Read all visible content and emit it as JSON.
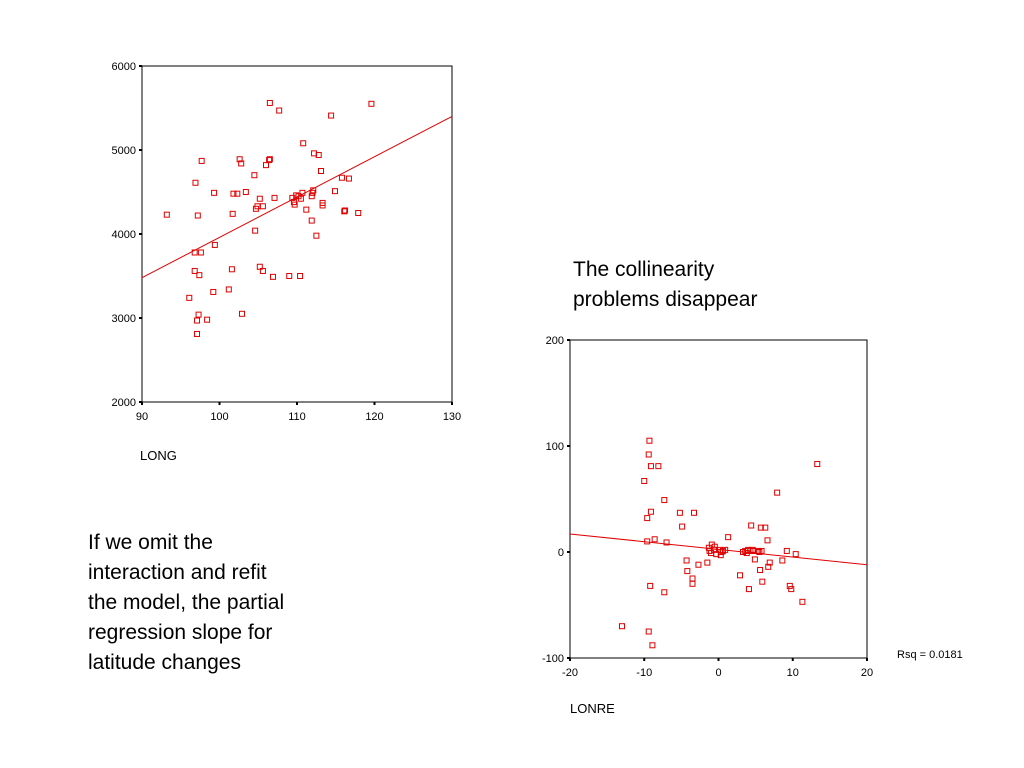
{
  "notes": {
    "collinearity": "The collinearity\nproblems disappear",
    "omit_interaction": "If we omit the\ninteraction and refit\nthe model, the partial\nregression slope for\nlatitude changes"
  },
  "colors": {
    "marker": "#e00000",
    "fit_line": "#e00000",
    "axis": "#000000"
  },
  "chart_data": [
    {
      "type": "scatter",
      "title": "",
      "xlabel": "LONG",
      "ylabel": "",
      "xlim": [
        90,
        130
      ],
      "ylim": [
        2000,
        6000
      ],
      "xticks": [
        90,
        100,
        110,
        120,
        130
      ],
      "yticks": [
        2000,
        3000,
        4000,
        5000,
        6000
      ],
      "marker": "hollow-square",
      "fit_line": {
        "x": [
          90,
          130
        ],
        "y": [
          3480,
          5400
        ]
      },
      "points": [
        {
          "x": 93.2,
          "y": 4230
        },
        {
          "x": 96.1,
          "y": 3240
        },
        {
          "x": 96.8,
          "y": 3780
        },
        {
          "x": 96.8,
          "y": 3560
        },
        {
          "x": 96.9,
          "y": 4610
        },
        {
          "x": 97.1,
          "y": 2810
        },
        {
          "x": 97.1,
          "y": 2970
        },
        {
          "x": 97.2,
          "y": 4220
        },
        {
          "x": 97.3,
          "y": 3040
        },
        {
          "x": 97.4,
          "y": 3510
        },
        {
          "x": 97.6,
          "y": 3780
        },
        {
          "x": 97.7,
          "y": 4870
        },
        {
          "x": 98.4,
          "y": 2980
        },
        {
          "x": 99.2,
          "y": 3310
        },
        {
          "x": 99.4,
          "y": 3870
        },
        {
          "x": 99.3,
          "y": 4490
        },
        {
          "x": 101.2,
          "y": 3340
        },
        {
          "x": 101.6,
          "y": 3580
        },
        {
          "x": 101.7,
          "y": 4240
        },
        {
          "x": 101.8,
          "y": 4480
        },
        {
          "x": 102.3,
          "y": 4480
        },
        {
          "x": 102.6,
          "y": 4890
        },
        {
          "x": 102.8,
          "y": 4840
        },
        {
          "x": 102.9,
          "y": 3050
        },
        {
          "x": 103.4,
          "y": 4500
        },
        {
          "x": 104.5,
          "y": 4700
        },
        {
          "x": 104.6,
          "y": 4040
        },
        {
          "x": 104.7,
          "y": 4300
        },
        {
          "x": 104.9,
          "y": 4330
        },
        {
          "x": 105.2,
          "y": 4420
        },
        {
          "x": 105.2,
          "y": 3610
        },
        {
          "x": 105.6,
          "y": 3560
        },
        {
          "x": 105.6,
          "y": 4330
        },
        {
          "x": 106.0,
          "y": 4820
        },
        {
          "x": 106.4,
          "y": 4880
        },
        {
          "x": 106.5,
          "y": 4890
        },
        {
          "x": 106.5,
          "y": 5560
        },
        {
          "x": 106.9,
          "y": 3490
        },
        {
          "x": 107.1,
          "y": 4430
        },
        {
          "x": 107.7,
          "y": 5470
        },
        {
          "x": 109.0,
          "y": 3500
        },
        {
          "x": 109.4,
          "y": 4430
        },
        {
          "x": 109.6,
          "y": 4380
        },
        {
          "x": 109.7,
          "y": 4350
        },
        {
          "x": 109.9,
          "y": 4460
        },
        {
          "x": 110.2,
          "y": 4450
        },
        {
          "x": 110.4,
          "y": 3500
        },
        {
          "x": 110.5,
          "y": 4420
        },
        {
          "x": 110.7,
          "y": 4490
        },
        {
          "x": 110.8,
          "y": 5080
        },
        {
          "x": 111.2,
          "y": 4290
        },
        {
          "x": 111.9,
          "y": 4450
        },
        {
          "x": 111.9,
          "y": 4160
        },
        {
          "x": 112.0,
          "y": 4490
        },
        {
          "x": 112.1,
          "y": 4520
        },
        {
          "x": 112.2,
          "y": 4960
        },
        {
          "x": 112.5,
          "y": 3980
        },
        {
          "x": 112.8,
          "y": 4940
        },
        {
          "x": 113.1,
          "y": 4750
        },
        {
          "x": 113.3,
          "y": 4340
        },
        {
          "x": 113.3,
          "y": 4370
        },
        {
          "x": 114.4,
          "y": 5410
        },
        {
          "x": 114.9,
          "y": 4510
        },
        {
          "x": 115.8,
          "y": 4670
        },
        {
          "x": 116.1,
          "y": 4270
        },
        {
          "x": 116.2,
          "y": 4280
        },
        {
          "x": 116.7,
          "y": 4660
        },
        {
          "x": 117.9,
          "y": 4250
        },
        {
          "x": 119.6,
          "y": 5550
        }
      ]
    },
    {
      "type": "scatter",
      "title": "",
      "xlabel": "LONRE",
      "ylabel": "",
      "xlim": [
        -20,
        20
      ],
      "ylim": [
        -100,
        200
      ],
      "xticks": [
        -20,
        -10,
        0,
        10,
        20
      ],
      "yticks": [
        -100,
        0,
        100,
        200
      ],
      "marker": "hollow-square",
      "annotation": "Rsq = 0.0181",
      "fit_line": {
        "x": [
          -20,
          20
        ],
        "y": [
          17,
          -12
        ]
      },
      "points": [
        {
          "x": -13.0,
          "y": -70
        },
        {
          "x": -10.0,
          "y": 67
        },
        {
          "x": -9.6,
          "y": 32
        },
        {
          "x": -9.6,
          "y": 10
        },
        {
          "x": -9.4,
          "y": -75
        },
        {
          "x": -9.4,
          "y": 92
        },
        {
          "x": -9.3,
          "y": 105
        },
        {
          "x": -9.2,
          "y": -32
        },
        {
          "x": -9.1,
          "y": 38
        },
        {
          "x": -9.1,
          "y": 81
        },
        {
          "x": -8.9,
          "y": -88
        },
        {
          "x": -8.6,
          "y": 12
        },
        {
          "x": -8.1,
          "y": 81
        },
        {
          "x": -7.3,
          "y": -38
        },
        {
          "x": -7.3,
          "y": 49
        },
        {
          "x": -7.0,
          "y": 9
        },
        {
          "x": -5.2,
          "y": 37
        },
        {
          "x": -4.9,
          "y": 24
        },
        {
          "x": -4.2,
          "y": -18
        },
        {
          "x": -3.5,
          "y": -25
        },
        {
          "x": -3.5,
          "y": -30
        },
        {
          "x": -3.3,
          "y": 37
        },
        {
          "x": -2.7,
          "y": -12
        },
        {
          "x": -4.3,
          "y": -8
        },
        {
          "x": -1.5,
          "y": -10
        },
        {
          "x": -1.3,
          "y": 4
        },
        {
          "x": -1.2,
          "y": 1
        },
        {
          "x": -1.0,
          "y": -1
        },
        {
          "x": -0.9,
          "y": 7
        },
        {
          "x": -0.6,
          "y": 2
        },
        {
          "x": -0.5,
          "y": 5
        },
        {
          "x": -0.3,
          "y": -2
        },
        {
          "x": 0.2,
          "y": 2
        },
        {
          "x": 0.3,
          "y": -3
        },
        {
          "x": 0.4,
          "y": 0
        },
        {
          "x": 0.6,
          "y": 1
        },
        {
          "x": 0.9,
          "y": 2
        },
        {
          "x": 1.3,
          "y": 14
        },
        {
          "x": 2.9,
          "y": -22
        },
        {
          "x": 3.3,
          "y": 0
        },
        {
          "x": 3.6,
          "y": 1
        },
        {
          "x": 3.8,
          "y": -1
        },
        {
          "x": 4.0,
          "y": 2
        },
        {
          "x": 4.1,
          "y": -35
        },
        {
          "x": 4.3,
          "y": 1
        },
        {
          "x": 4.4,
          "y": 25
        },
        {
          "x": 4.6,
          "y": 2
        },
        {
          "x": 4.7,
          "y": 1
        },
        {
          "x": 4.9,
          "y": -7
        },
        {
          "x": 5.3,
          "y": 1
        },
        {
          "x": 5.5,
          "y": 0
        },
        {
          "x": 5.6,
          "y": -17
        },
        {
          "x": 5.7,
          "y": 23
        },
        {
          "x": 5.8,
          "y": 1
        },
        {
          "x": 5.9,
          "y": -28
        },
        {
          "x": 6.3,
          "y": 23
        },
        {
          "x": 6.6,
          "y": 11
        },
        {
          "x": 6.7,
          "y": -14
        },
        {
          "x": 6.9,
          "y": -10
        },
        {
          "x": 7.9,
          "y": 56
        },
        {
          "x": 8.6,
          "y": -8
        },
        {
          "x": 9.2,
          "y": 1
        },
        {
          "x": 9.6,
          "y": -32
        },
        {
          "x": 9.8,
          "y": -35
        },
        {
          "x": 10.4,
          "y": -2
        },
        {
          "x": 11.3,
          "y": -47
        },
        {
          "x": 13.3,
          "y": 83
        }
      ]
    }
  ]
}
